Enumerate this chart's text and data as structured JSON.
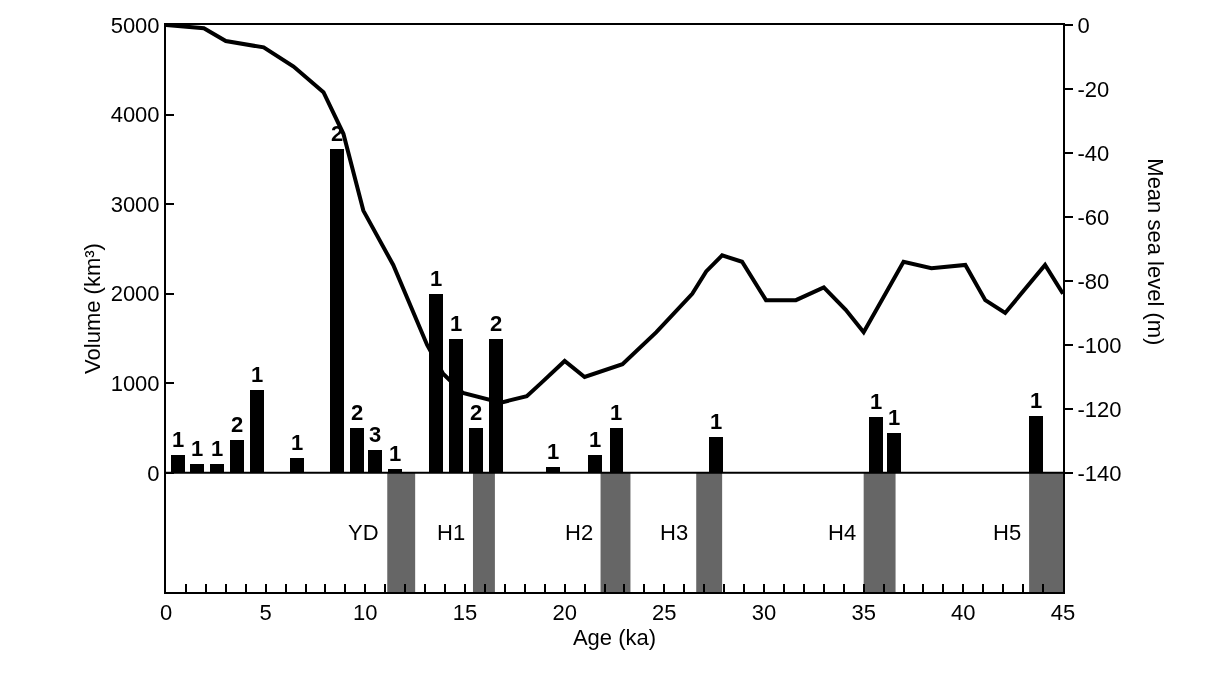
{
  "chart_data": {
    "type": "bar",
    "xlabel": "Age (ka)",
    "ylabel": "Volume (km³)",
    "y2label": "Mean sea level (m)",
    "x": [
      0.6,
      1.55,
      2.55,
      3.55,
      4.55,
      6.55,
      8.6,
      9.6,
      10.5,
      11.5,
      13.55,
      14.55,
      15.55,
      16.55,
      19.4,
      21.5,
      22.6,
      27.6,
      35.6,
      36.5,
      43.65
    ],
    "series": [
      {
        "color": "#000000",
        "values": [
          200,
          100,
          100,
          370,
          920,
          170,
          3620,
          500,
          250,
          40,
          2000,
          1500,
          500,
          1500,
          60,
          200,
          500,
          400,
          620,
          450,
          640
        ]
      },
      {
        "type": "line",
        "axis": "y2",
        "color": "#000000",
        "x": [
          0,
          1.9,
          3.0,
          4.9,
          6.4,
          7.9,
          8.9,
          9.9,
          11.4,
          13.1,
          13.9,
          14.9,
          16.8,
          18.1,
          18.8,
          20.0,
          21.0,
          22.9,
          24.6,
          26.4,
          27.1,
          27.9,
          28.9,
          30.1,
          31.6,
          33.0,
          34.1,
          35.0,
          37.0,
          38.4,
          40.1,
          41.1,
          42.1,
          44.1,
          45.0
        ],
        "values": [
          0,
          -1,
          -5,
          -7,
          -13,
          -21,
          -34,
          -58,
          -75,
          -100,
          -109,
          -115,
          -118,
          -116,
          -112,
          -105,
          -110,
          -106,
          -96,
          -84,
          -77,
          -72,
          -74,
          -86,
          -86,
          -82,
          -89,
          -96,
          -74,
          -76,
          -75,
          -86,
          -90,
          -75,
          -84
        ]
      }
    ],
    "annotations": [
      {
        "text": "1",
        "x": 0.6,
        "y": 200
      },
      {
        "text": "1",
        "x": 1.55,
        "y": 100
      },
      {
        "text": "1",
        "x": 2.55,
        "y": 100
      },
      {
        "text": "2",
        "x": 3.55,
        "y": 370
      },
      {
        "text": "1",
        "x": 4.55,
        "y": 920
      },
      {
        "text": "1",
        "x": 6.55,
        "y": 170
      },
      {
        "text": "2",
        "x": 8.6,
        "y": 3620
      },
      {
        "text": "2",
        "x": 9.6,
        "y": 500
      },
      {
        "text": "3",
        "x": 10.5,
        "y": 250
      },
      {
        "text": "1",
        "x": 11.5,
        "y": 40
      },
      {
        "text": "1",
        "x": 13.55,
        "y": 2000
      },
      {
        "text": "1",
        "x": 14.55,
        "y": 1500
      },
      {
        "text": "2",
        "x": 15.55,
        "y": 500
      },
      {
        "text": "2",
        "x": 16.55,
        "y": 1500
      },
      {
        "text": "1",
        "x": 19.4,
        "y": 60
      },
      {
        "text": "1",
        "x": 21.5,
        "y": 200
      },
      {
        "text": "1",
        "x": 22.6,
        "y": 500
      },
      {
        "text": "1",
        "x": 27.6,
        "y": 400
      },
      {
        "text": "1",
        "x": 35.6,
        "y": 620
      },
      {
        "text": "1",
        "x": 36.5,
        "y": 450
      },
      {
        "text": "1",
        "x": 43.65,
        "y": 640
      }
    ],
    "xlim": [
      0,
      45
    ],
    "xticks": [
      0,
      {
        "value": 1,
        "label": null
      },
      {
        "value": 2,
        "label": null
      },
      {
        "value": 3,
        "label": null
      },
      {
        "value": 4,
        "label": null
      },
      5,
      {
        "value": 6,
        "label": null
      },
      {
        "value": 7,
        "label": null
      },
      {
        "value": 8,
        "label": null
      },
      {
        "value": 9,
        "label": null
      },
      10,
      {
        "value": 11,
        "label": null
      },
      {
        "value": 12,
        "label": null
      },
      {
        "value": 13,
        "label": null
      },
      {
        "value": 14,
        "label": null
      },
      15,
      {
        "value": 16,
        "label": null
      },
      {
        "value": 17,
        "label": null
      },
      {
        "value": 18,
        "label": null
      },
      {
        "value": 19,
        "label": null
      },
      20,
      {
        "value": 21,
        "label": null
      },
      {
        "value": 22,
        "label": null
      },
      {
        "value": 23,
        "label": null
      },
      {
        "value": 24,
        "label": null
      },
      25,
      {
        "value": 26,
        "label": null
      },
      {
        "value": 27,
        "label": null
      },
      {
        "value": 28,
        "label": null
      },
      {
        "value": 29,
        "label": null
      },
      30,
      {
        "value": 31,
        "label": null
      },
      {
        "value": 32,
        "label": null
      },
      {
        "value": 33,
        "label": null
      },
      {
        "value": 34,
        "label": null
      },
      35,
      {
        "value": 36,
        "label": null
      },
      {
        "value": 37,
        "label": null
      },
      {
        "value": 38,
        "label": null
      },
      {
        "value": 39,
        "label": null
      },
      40,
      {
        "value": 41,
        "label": null
      },
      {
        "value": 42,
        "label": null
      },
      {
        "value": 43,
        "label": null
      },
      {
        "value": 44,
        "label": null
      },
      45
    ],
    "ylim": [
      -1330,
      5000
    ],
    "yticks": [
      0,
      1000,
      2000,
      3000,
      4000,
      5000
    ],
    "y2lim": [
      -177.2,
      0
    ],
    "ref_lines": [
      {
        "axis": "y",
        "value": 0,
        "color": "#000000"
      }
    ],
    "y2ticks": [
      0,
      -20,
      -40,
      -60,
      -80,
      -100,
      -120,
      -140
    ],
    "bands": [
      {
        "axis": "x",
        "from": 11.1,
        "to": 12.5,
        "label": "YD",
        "color": "#666666"
      },
      {
        "axis": "x",
        "from": 15.4,
        "to": 16.5,
        "label": "H1",
        "color": "#666666"
      },
      {
        "axis": "x",
        "from": 21.8,
        "to": 23.3,
        "label": "H2",
        "color": "#666666"
      },
      {
        "axis": "x",
        "from": 26.6,
        "to": 27.9,
        "label": "H3",
        "color": "#666666"
      },
      {
        "axis": "x",
        "from": 35.0,
        "to": 36.6,
        "label": "H4",
        "color": "#666666"
      },
      {
        "axis": "x",
        "from": 43.3,
        "to": 45.0,
        "label": "H5",
        "color": "#666666"
      }
    ]
  }
}
